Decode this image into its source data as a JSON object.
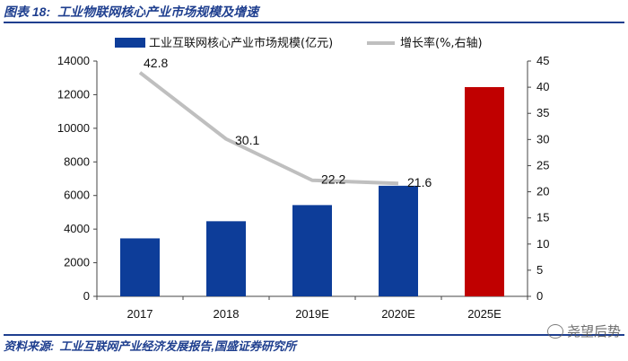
{
  "figure": {
    "label": "图表 18:",
    "title": "工业物联网核心产业市场规模及增速",
    "source_label": "资料来源:",
    "source": "工业互联网产业经济发展报告,国盛证券研究所",
    "watermark": "尧望后势"
  },
  "colors": {
    "bar": "#0d3d99",
    "bar_forecast_2025": "#c00000",
    "line": "#bfbfbf",
    "title": "#1f3f8f"
  },
  "chart_data": {
    "type": "bar",
    "categories": [
      "2017",
      "2018",
      "2019E",
      "2020E",
      "2025E"
    ],
    "series": [
      {
        "name": "工业互联网核心产业市场规模(亿元)",
        "type": "bar",
        "axis": "left",
        "values": [
          3450,
          4470,
          5430,
          6580,
          12450
        ]
      },
      {
        "name": "增长率(%,右轴)",
        "type": "line",
        "axis": "right",
        "values": [
          42.8,
          30.1,
          22.2,
          21.6,
          null
        ],
        "labels": [
          "42.8",
          "30.1",
          "22.2",
          "21.6",
          ""
        ]
      }
    ],
    "y_left": {
      "min": 0,
      "max": 14000,
      "ticks": [
        "0",
        "2000",
        "4000",
        "6000",
        "8000",
        "10000",
        "12000",
        "14000"
      ]
    },
    "y_right": {
      "min": 0,
      "max": 45,
      "ticks": [
        "0",
        "5",
        "10",
        "15",
        "20",
        "25",
        "30",
        "35",
        "40",
        "45"
      ]
    },
    "grid": false,
    "legend": "top"
  }
}
